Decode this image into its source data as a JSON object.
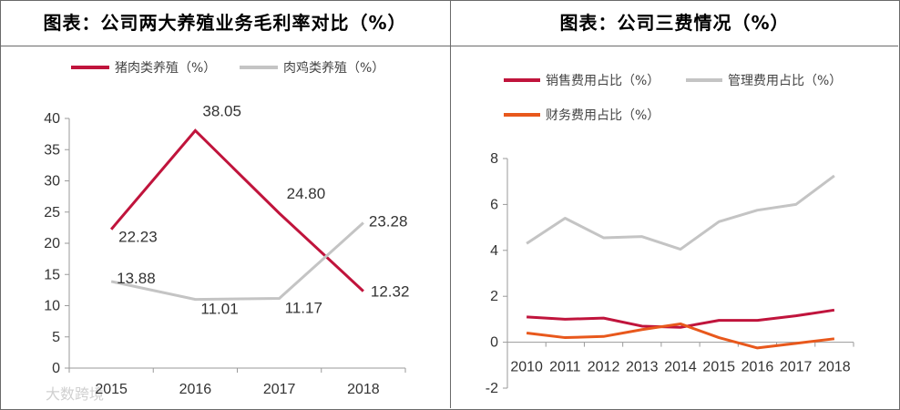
{
  "left": {
    "title": "图表：公司两大养殖业务毛利率对比（%）",
    "watermark": "大数跨境",
    "chart_data": {
      "type": "line",
      "categories": [
        "2015",
        "2016",
        "2017",
        "2018"
      ],
      "series": [
        {
          "name": "猪肉类养殖（%）",
          "color": "#c0143c",
          "values": [
            22.23,
            38.05,
            24.8,
            12.32
          ],
          "labels": [
            "22.23",
            "38.05",
            "24.80",
            "12.32"
          ]
        },
        {
          "name": "肉鸡类养殖（%）",
          "color": "#c4c4c4",
          "values": [
            13.88,
            11.01,
            11.17,
            23.28
          ],
          "labels": [
            "13.88",
            "11.01",
            "11.17",
            "23.28"
          ]
        }
      ],
      "ylim": [
        0,
        40
      ],
      "yticks": [
        "0",
        "5",
        "10",
        "15",
        "20",
        "25",
        "30",
        "35",
        "40"
      ],
      "legend_position": "top"
    }
  },
  "right": {
    "title": "图表：公司三费情况（%）",
    "chart_data": {
      "type": "line",
      "categories": [
        "2010",
        "2011",
        "2012",
        "2013",
        "2014",
        "2015",
        "2016",
        "2017",
        "2018"
      ],
      "series": [
        {
          "name": "销售费用占比（%）",
          "color": "#c0143c",
          "values": [
            1.1,
            1.0,
            1.05,
            0.7,
            0.65,
            0.95,
            0.95,
            1.15,
            1.4
          ]
        },
        {
          "name": "管理费用占比（%）",
          "color": "#c4c4c4",
          "values": [
            4.3,
            5.4,
            4.55,
            4.6,
            4.05,
            5.25,
            5.75,
            6.0,
            7.25
          ]
        },
        {
          "name": "财务费用占比（%）",
          "color": "#e8581c",
          "values": [
            0.4,
            0.2,
            0.25,
            0.55,
            0.8,
            0.2,
            -0.25,
            -0.05,
            0.15
          ]
        }
      ],
      "ylim": [
        -2,
        8
      ],
      "yticks": [
        "-2",
        "0",
        "2",
        "4",
        "6",
        "8"
      ],
      "legend_position": "top"
    }
  }
}
